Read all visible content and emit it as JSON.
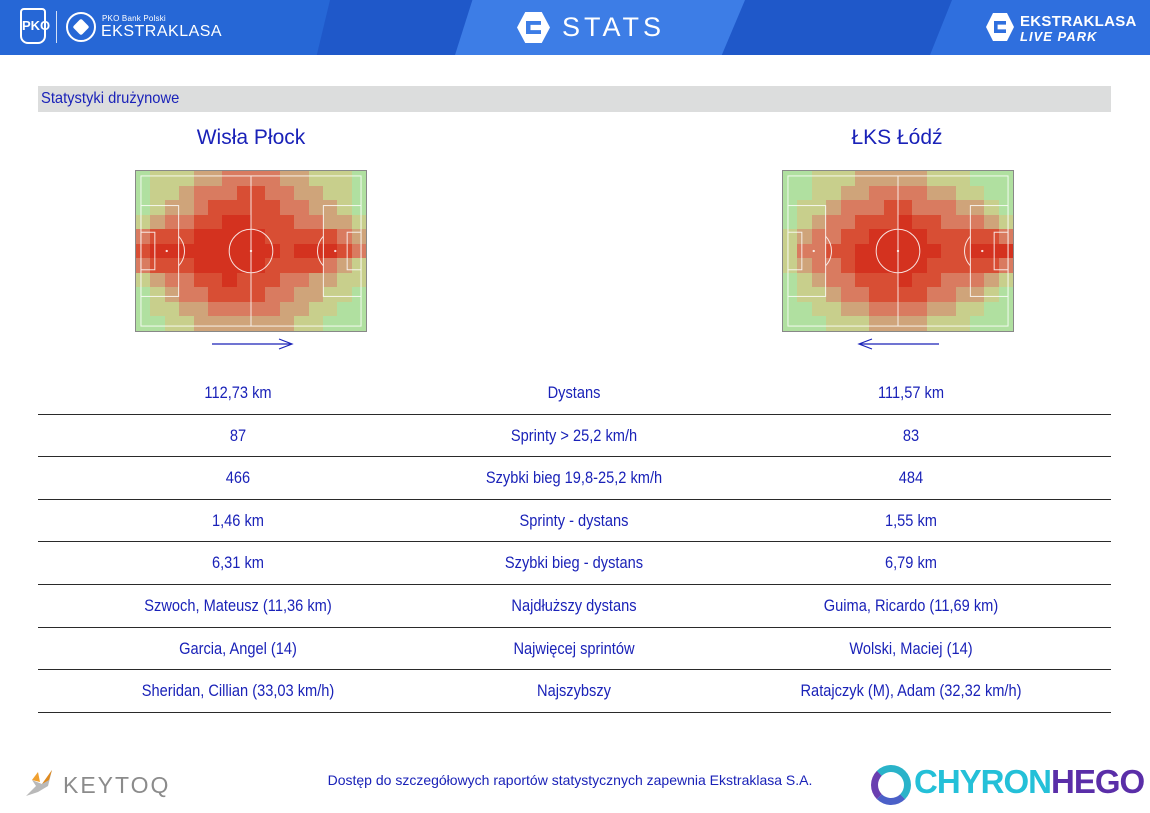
{
  "header": {
    "pko_mark": "PKO",
    "pko_sub": "PKO Bank Polski",
    "league_name": "EKSTRAKLASA",
    "stats_title": "STATS",
    "live_park_line1": "EKSTRAKLASA",
    "live_park_line2": "LIVE PARK"
  },
  "section": {
    "title": "Statystyki drużynowe"
  },
  "teams": {
    "home": "Wisła Płock",
    "away": "ŁKS Łódź"
  },
  "heatmaps": {
    "home": {
      "attack_direction": "right",
      "colors": [
        "#b0e0a0",
        "#c8cf8c",
        "#cfa47a",
        "#d97b60",
        "#d84e34",
        "#d4321f"
      ],
      "intensity": [
        [
          0,
          1,
          1,
          1,
          2,
          2,
          3,
          3,
          3,
          3,
          2,
          2,
          1,
          1,
          1,
          0
        ],
        [
          0,
          1,
          1,
          2,
          3,
          3,
          3,
          4,
          4,
          3,
          3,
          2,
          2,
          1,
          1,
          0
        ],
        [
          0,
          1,
          2,
          2,
          3,
          4,
          4,
          4,
          4,
          4,
          3,
          3,
          2,
          2,
          1,
          0
        ],
        [
          1,
          2,
          3,
          3,
          4,
          4,
          5,
          5,
          4,
          4,
          4,
          3,
          3,
          2,
          2,
          1
        ],
        [
          3,
          4,
          4,
          4,
          5,
          5,
          5,
          5,
          5,
          4,
          4,
          4,
          4,
          4,
          3,
          2
        ],
        [
          4,
          5,
          5,
          5,
          5,
          5,
          5,
          5,
          5,
          5,
          4,
          5,
          5,
          5,
          4,
          3
        ],
        [
          3,
          4,
          4,
          4,
          5,
          5,
          5,
          5,
          5,
          4,
          4,
          4,
          4,
          3,
          2,
          1
        ],
        [
          1,
          2,
          3,
          3,
          4,
          4,
          5,
          4,
          4,
          4,
          3,
          3,
          2,
          2,
          1,
          1
        ],
        [
          0,
          1,
          2,
          3,
          3,
          4,
          4,
          4,
          4,
          3,
          3,
          2,
          2,
          1,
          1,
          0
        ],
        [
          0,
          1,
          1,
          2,
          2,
          3,
          3,
          3,
          3,
          3,
          2,
          2,
          1,
          1,
          0,
          0
        ],
        [
          0,
          0,
          1,
          1,
          2,
          2,
          2,
          2,
          2,
          2,
          2,
          1,
          1,
          0,
          0,
          0
        ]
      ]
    },
    "away": {
      "attack_direction": "left",
      "colors": [
        "#b0e0a0",
        "#c8cf8c",
        "#cfa47a",
        "#d97b60",
        "#d84e34",
        "#d4321f"
      ],
      "intensity": [
        [
          0,
          0,
          1,
          1,
          1,
          2,
          2,
          2,
          2,
          2,
          1,
          1,
          1,
          0,
          0,
          0
        ],
        [
          0,
          0,
          1,
          1,
          2,
          2,
          3,
          3,
          3,
          3,
          2,
          2,
          1,
          1,
          0,
          0
        ],
        [
          0,
          1,
          1,
          2,
          3,
          3,
          3,
          4,
          4,
          3,
          3,
          3,
          2,
          2,
          1,
          0
        ],
        [
          0,
          1,
          2,
          3,
          3,
          4,
          4,
          4,
          5,
          4,
          4,
          3,
          3,
          3,
          2,
          1
        ],
        [
          1,
          2,
          3,
          3,
          4,
          4,
          5,
          5,
          5,
          5,
          4,
          4,
          4,
          4,
          4,
          3
        ],
        [
          1,
          3,
          3,
          4,
          4,
          5,
          5,
          5,
          5,
          5,
          5,
          4,
          4,
          5,
          5,
          5
        ],
        [
          1,
          2,
          3,
          3,
          4,
          5,
          5,
          5,
          5,
          5,
          4,
          4,
          4,
          4,
          4,
          3
        ],
        [
          0,
          1,
          2,
          3,
          3,
          4,
          4,
          4,
          5,
          4,
          4,
          3,
          3,
          3,
          2,
          1
        ],
        [
          0,
          1,
          1,
          2,
          3,
          3,
          4,
          4,
          4,
          4,
          3,
          3,
          2,
          2,
          1,
          0
        ],
        [
          0,
          0,
          1,
          1,
          2,
          2,
          3,
          3,
          3,
          3,
          2,
          2,
          1,
          1,
          0,
          0
        ],
        [
          0,
          0,
          0,
          1,
          1,
          1,
          2,
          2,
          2,
          2,
          1,
          1,
          1,
          0,
          0,
          0
        ]
      ]
    }
  },
  "stats": [
    {
      "home": "112,73 km",
      "label": "Dystans",
      "away": "111,57 km"
    },
    {
      "home": "87",
      "label": "Sprinty > 25,2 km/h",
      "away": "83"
    },
    {
      "home": "466",
      "label": "Szybki bieg 19,8-25,2 km/h",
      "away": "484"
    },
    {
      "home": "1,46 km",
      "label": "Sprinty - dystans",
      "away": "1,55 km"
    },
    {
      "home": "6,31 km",
      "label": "Szybki bieg - dystans",
      "away": "6,79 km"
    },
    {
      "home": "Szwoch, Mateusz (11,36 km)",
      "label": "Najdłuższy dystans",
      "away": "Guima, Ricardo (11,69 km)"
    },
    {
      "home": "Garcia, Angel (14)",
      "label": "Najwięcej sprintów",
      "away": "Wolski, Maciej (14)"
    },
    {
      "home": "Sheridan, Cillian (33,03 km/h)",
      "label": "Najszybszy",
      "away": "Ratajczyk (M), Adam (32,32 km/h)"
    }
  ],
  "footer": {
    "keytoq": "KEYTOQ",
    "note": "Dostęp do szczegółowych raportów statystycznych zapewnia Ekstraklasa S.A.",
    "chyron_part1": "CHYRON",
    "chyron_part2": "HEGO"
  }
}
